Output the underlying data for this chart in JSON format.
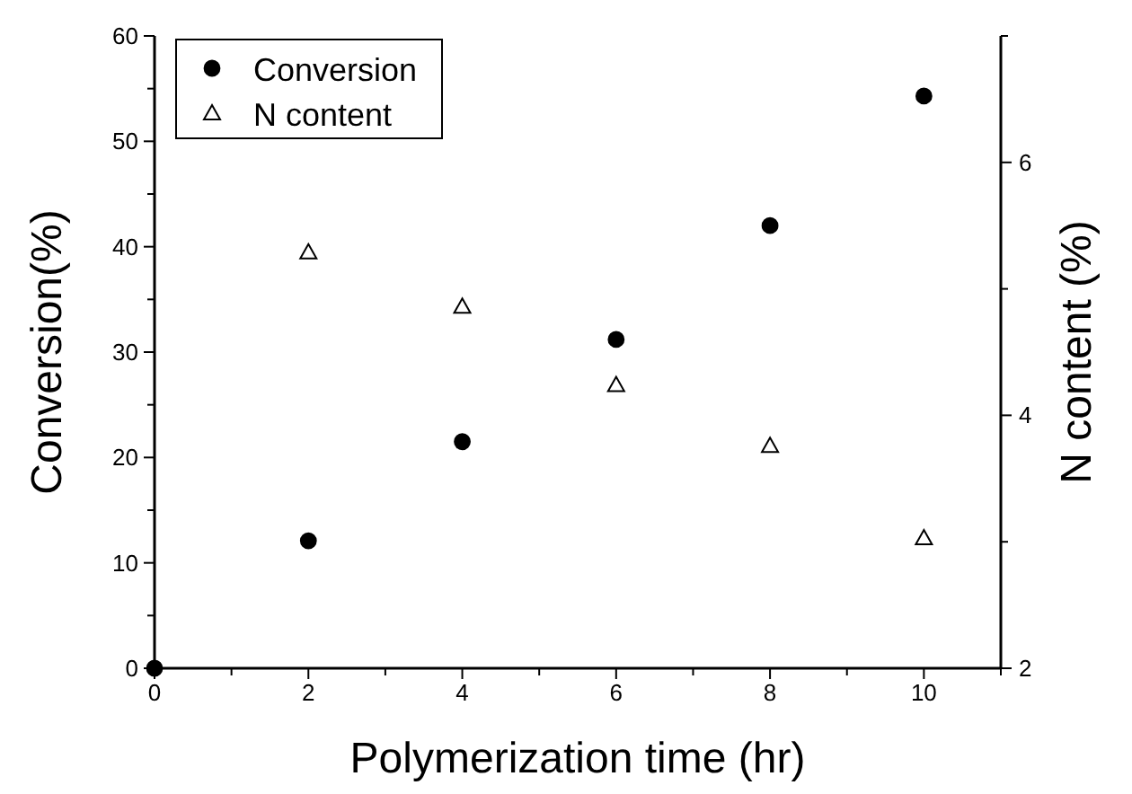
{
  "chart_data": {
    "type": "scatter",
    "xlabel": "Polymerization time (hr)",
    "ylabel": "Conversion(%)",
    "y2label": "N content (%)",
    "xlim": [
      0,
      11
    ],
    "xticks": [
      0,
      {
        "value": 1,
        "label": null
      },
      2,
      {
        "value": 3,
        "label": null
      },
      4,
      {
        "value": 5,
        "label": null
      },
      6,
      {
        "value": 7,
        "label": null
      },
      8,
      {
        "value": 9,
        "label": null
      },
      10,
      {
        "value": 11,
        "label": null
      }
    ],
    "ylim": [
      0,
      60
    ],
    "yticks": [
      0,
      {
        "value": 5,
        "label": null
      },
      10,
      {
        "value": 15,
        "label": null
      },
      20,
      {
        "value": 25,
        "label": null
      },
      30,
      {
        "value": 35,
        "label": null
      },
      40,
      {
        "value": 45,
        "label": null
      },
      50,
      {
        "value": 55,
        "label": null
      },
      60
    ],
    "y2lim": [
      2,
      7
    ],
    "y2ticks": [
      2,
      {
        "value": 3,
        "label": null
      },
      4,
      {
        "value": 5,
        "label": null
      },
      6,
      {
        "value": 7,
        "label": null
      }
    ],
    "legend": "top left",
    "series": [
      {
        "name": "Conversion",
        "color": "#000000",
        "marker": "circle",
        "x": [
          0,
          2,
          4,
          6,
          8,
          10
        ],
        "values": [
          0,
          12.1,
          21.5,
          31.2,
          42.0,
          54.3
        ]
      },
      {
        "name": "N content",
        "color": "#000000",
        "marker": "triangle",
        "axis": "y2",
        "x": [
          2,
          4,
          6,
          8,
          10
        ],
        "values": [
          5.29,
          4.86,
          4.24,
          3.76,
          3.03
        ]
      }
    ]
  }
}
